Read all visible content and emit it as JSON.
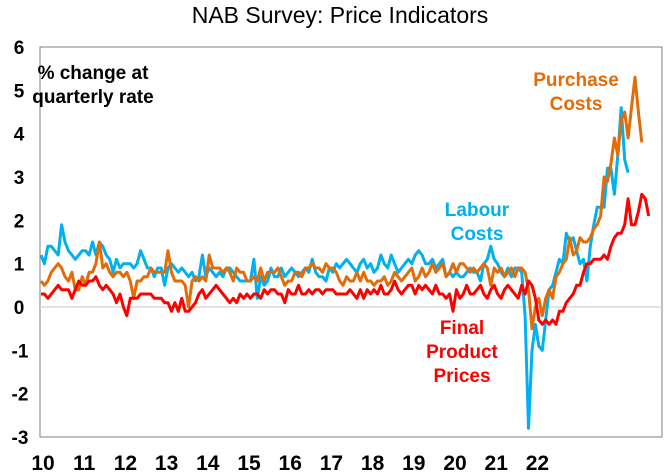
{
  "chart_data": {
    "type": "line",
    "title": "NAB Survey: Price Indicators",
    "xlabel": "",
    "ylabel": "",
    "ylim": [
      -3,
      6
    ],
    "yticks": [
      "6",
      "5",
      "4",
      "3",
      "2",
      "1",
      "0",
      "-1",
      "-2",
      "-3"
    ],
    "ytick_values": [
      6,
      5,
      4,
      3,
      2,
      1,
      0,
      -1,
      -2,
      -3
    ],
    "xticks": [
      "10",
      "11",
      "12",
      "13",
      "14",
      "15",
      "16",
      "17",
      "18",
      "19",
      "20",
      "21",
      "22"
    ],
    "x_start": "2010-01",
    "frequency": "monthly",
    "grid": false,
    "zero_line": true,
    "annotations": {
      "units": [
        "% change at",
        "quarterly rate"
      ],
      "purchase": [
        "Purchase",
        "Costs"
      ],
      "labour": [
        "Labour",
        "Costs"
      ],
      "final": [
        "Final",
        "Product",
        "Prices"
      ]
    },
    "series": [
      {
        "name": "Labour Costs",
        "color": "#00B0F0",
        "values": [
          1.2,
          1.0,
          1.4,
          1.4,
          1.3,
          1.2,
          1.9,
          1.5,
          1.3,
          1.2,
          1.1,
          1.2,
          1.3,
          1.3,
          1.2,
          1.5,
          1.2,
          1.5,
          1.4,
          1.2,
          1.1,
          0.8,
          1.1,
          0.9,
          1.0,
          1.0,
          1.0,
          0.9,
          1.0,
          1.3,
          1.1,
          0.9,
          0.9,
          0.7,
          0.9,
          0.9,
          0.5,
          0.9,
          1.0,
          0.9,
          0.8,
          0.9,
          0.8,
          0.7,
          0.8,
          0.6,
          0.7,
          1.2,
          0.7,
          0.9,
          0.8,
          0.7,
          0.8,
          0.7,
          0.9,
          0.9,
          0.8,
          0.7,
          0.6,
          0.6,
          0.6,
          0.6,
          1.1,
          0.2,
          0.7,
          0.5,
          0.6,
          0.9,
          0.7,
          0.7,
          0.9,
          0.7,
          0.8,
          0.9,
          0.8,
          0.7,
          0.8,
          0.9,
          0.8,
          1.1,
          0.8,
          0.7,
          0.7,
          0.6,
          0.9,
          0.8,
          1.0,
          0.9,
          1.0,
          1.1,
          1.0,
          0.9,
          0.8,
          1.0,
          1.1,
          0.9,
          1.0,
          0.8,
          0.9,
          1.2,
          1.0,
          0.9,
          1.2,
          1.0,
          0.8,
          0.9,
          1.0,
          1.1,
          1.0,
          1.2,
          1.3,
          1.2,
          1.0,
          1.0,
          1.1,
          0.9,
          1.0,
          1.1,
          0.7,
          0.8,
          0.7,
          0.8,
          0.7,
          0.7,
          0.8,
          0.9,
          0.8,
          0.8,
          0.6,
          1.0,
          1.1,
          1.4,
          1.1,
          1.0,
          0.8,
          0.7,
          0.9,
          0.7,
          0.9,
          0.9,
          0.8,
          -0.2,
          -2.8,
          -1.0,
          -0.4,
          -0.9,
          -1.0,
          -0.3,
          0.4,
          0.5,
          0.8,
          1.1,
          1.0,
          1.7,
          1.5,
          1.6,
          1.3,
          1.0,
          1.1,
          0.6,
          1.4,
          1.9,
          2.3,
          2.3,
          2.3,
          3.2,
          3.2,
          2.6,
          3.5,
          4.6,
          3.4,
          3.1
        ]
      },
      {
        "name": "Purchase Costs",
        "color": "#E36C09",
        "values": [
          0.6,
          0.5,
          0.6,
          0.8,
          0.9,
          1.0,
          0.9,
          0.7,
          0.6,
          0.8,
          0.4,
          0.4,
          0.7,
          0.5,
          0.8,
          0.8,
          1.0,
          1.5,
          0.9,
          1.0,
          0.8,
          0.7,
          0.8,
          0.8,
          0.7,
          0.8,
          0.6,
          0.2,
          0.6,
          0.6,
          0.7,
          0.7,
          0.9,
          0.8,
          0.8,
          0.8,
          0.8,
          1.3,
          0.8,
          0.6,
          0.6,
          0.6,
          0.5,
          0.0,
          0.6,
          0.7,
          0.6,
          0.7,
          0.6,
          1.2,
          0.9,
          0.9,
          0.9,
          0.8,
          0.9,
          0.8,
          0.6,
          0.9,
          0.8,
          0.8,
          0.6,
          0.6,
          0.7,
          0.6,
          0.9,
          0.6,
          0.8,
          0.8,
          0.8,
          0.9,
          0.7,
          0.5,
          0.6,
          0.6,
          0.8,
          0.8,
          0.7,
          0.9,
          0.9,
          1.0,
          0.9,
          0.9,
          0.8,
          1.0,
          0.9,
          0.9,
          0.8,
          0.6,
          0.5,
          0.7,
          0.6,
          0.6,
          0.8,
          0.6,
          0.8,
          0.6,
          0.6,
          0.5,
          0.6,
          0.6,
          0.7,
          0.5,
          0.6,
          0.8,
          0.7,
          0.6,
          0.7,
          0.8,
          0.9,
          0.6,
          0.7,
          0.9,
          0.7,
          0.8,
          1.0,
          0.8,
          0.9,
          1.0,
          0.7,
          0.8,
          1.0,
          0.8,
          1.0,
          1.0,
          0.9,
          0.8,
          0.9,
          0.8,
          0.9,
          1.0,
          0.9,
          0.5,
          0.9,
          0.8,
          0.9,
          0.7,
          0.8,
          0.9,
          0.7,
          0.9,
          0.9,
          0.8,
          0.4,
          -0.5,
          0.0,
          0.2,
          -0.2,
          0.2,
          0.4,
          0.2,
          0.7,
          0.8,
          1.0,
          1.1,
          1.6,
          1.2,
          1.3,
          1.6,
          1.5,
          1.5,
          1.6,
          1.8,
          1.9,
          2.1,
          3.0,
          2.9,
          3.3,
          3.9,
          3.5,
          4.3,
          4.5,
          3.9,
          4.6,
          5.3,
          4.5,
          3.8
        ]
      },
      {
        "name": "Final Product Prices",
        "color": "#FF0000",
        "values": [
          0.3,
          0.3,
          0.2,
          0.3,
          0.4,
          0.5,
          0.4,
          0.4,
          0.4,
          0.2,
          0.4,
          0.6,
          0.5,
          0.5,
          0.6,
          0.6,
          0.7,
          0.5,
          0.4,
          0.5,
          0.4,
          0.3,
          0.1,
          0.3,
          0.0,
          -0.2,
          0.2,
          0.2,
          0.2,
          0.3,
          0.3,
          0.3,
          0.3,
          0.2,
          0.2,
          0.2,
          0.1,
          0.1,
          -0.1,
          0.1,
          -0.1,
          0.2,
          -0.1,
          -0.1,
          0.0,
          0.1,
          0.3,
          0.4,
          0.2,
          0.3,
          0.4,
          0.5,
          0.4,
          0.3,
          0.2,
          0.1,
          0.2,
          0.1,
          0.3,
          0.2,
          0.3,
          0.2,
          0.3,
          0.3,
          0.2,
          0.4,
          0.3,
          0.4,
          0.4,
          0.3,
          0.3,
          0.1,
          0.4,
          0.3,
          0.3,
          0.5,
          0.3,
          0.3,
          0.4,
          0.3,
          0.4,
          0.4,
          0.3,
          0.4,
          0.4,
          0.4,
          0.3,
          0.3,
          0.3,
          0.3,
          0.4,
          0.3,
          0.2,
          0.4,
          0.2,
          0.4,
          0.3,
          0.4,
          0.3,
          0.5,
          0.3,
          0.3,
          0.4,
          0.6,
          0.4,
          0.3,
          0.4,
          0.5,
          0.5,
          0.3,
          0.5,
          0.4,
          0.5,
          0.4,
          0.3,
          0.5,
          0.3,
          0.3,
          0.2,
          0.3,
          -0.1,
          0.4,
          0.2,
          0.3,
          0.5,
          0.3,
          0.3,
          0.4,
          0.5,
          0.3,
          0.2,
          0.4,
          0.5,
          0.3,
          0.2,
          0.4,
          0.5,
          0.4,
          0.3,
          0.2,
          0.5,
          0.3,
          0.6,
          0.5,
          0.2,
          -0.3,
          -0.4,
          -0.3,
          -0.4,
          -0.3,
          -0.4,
          -0.1,
          -0.1,
          0.1,
          0.2,
          0.3,
          0.5,
          0.5,
          0.8,
          1.0,
          1.0,
          1.1,
          1.1,
          1.1,
          1.2,
          1.1,
          1.4,
          1.6,
          1.7,
          1.7,
          1.9,
          2.5,
          1.9,
          1.9,
          2.2,
          2.6,
          2.5,
          2.1
        ]
      }
    ]
  }
}
